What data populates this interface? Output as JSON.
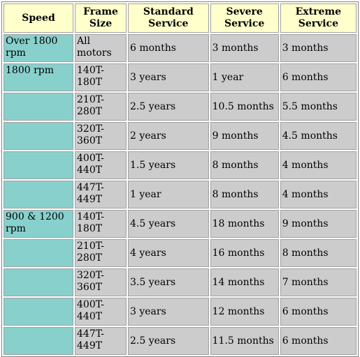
{
  "headers": [
    "Speed",
    "Frame Size",
    "Standard Service",
    "Severe Service",
    "Extreme Service"
  ],
  "rows": [
    [
      "Over 1800 rpm",
      "All motors",
      "6 months",
      "3 months",
      "3 months"
    ],
    [
      "1800 rpm",
      "140T-180T",
      "3 years",
      "1 year",
      "6 months"
    ],
    [
      "",
      "210T-280T",
      "2.5 years",
      "10.5 months",
      "5.5 months"
    ],
    [
      "",
      "320T-360T",
      "2 years",
      "9 months",
      "4.5 months"
    ],
    [
      "",
      "400T-440T",
      "1.5 years",
      "8 months",
      "4 months"
    ],
    [
      "",
      "447T-449T",
      "1 year",
      "8 months",
      "4 months"
    ],
    [
      "900 & 1200 rpm",
      "140T-180T",
      "4.5 years",
      "18 months",
      "9 months"
    ],
    [
      "",
      "210T-280T",
      "4 years",
      "16 months",
      "8 months"
    ],
    [
      "",
      "320T-360T",
      "3.5 years",
      "14 months",
      "7 months"
    ],
    [
      "",
      "400T-440T",
      "3 years",
      "12 months",
      "6 months"
    ],
    [
      "",
      "447T-449T",
      "2.5 years",
      "11.5 months",
      "6 months"
    ]
  ],
  "colors": {
    "header_bg": "#ffffcc",
    "speed_bg": "#88d0cc",
    "cell_bg": "#cccccc"
  }
}
